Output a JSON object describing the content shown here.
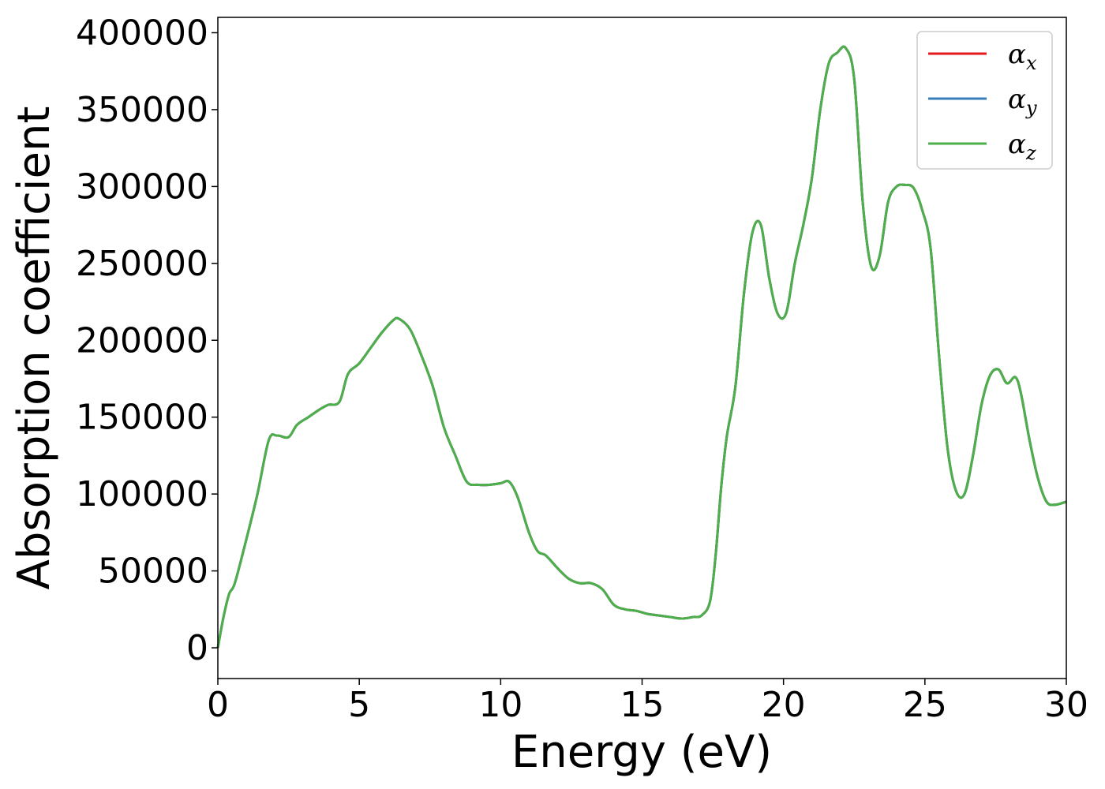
{
  "chart_data": {
    "type": "line",
    "title": "",
    "xlabel": "Energy (eV)",
    "ylabel": "Absorption coefficient",
    "xlim": [
      0,
      30
    ],
    "ylim": [
      -20000,
      410000
    ],
    "xticks": [
      0,
      5,
      10,
      15,
      20,
      25,
      30
    ],
    "yticks": [
      0,
      50000,
      100000,
      150000,
      200000,
      250000,
      300000,
      350000,
      400000
    ],
    "grid": false,
    "legend_position": "top-right",
    "x": [
      0,
      0.2,
      0.4,
      0.6,
      1.0,
      1.4,
      1.8,
      2.1,
      2.5,
      2.8,
      3.2,
      3.6,
      3.9,
      4.3,
      4.6,
      5.0,
      5.4,
      5.8,
      6.2,
      6.4,
      6.8,
      7.2,
      7.6,
      8.0,
      8.4,
      8.8,
      9.2,
      9.6,
      10.0,
      10.3,
      10.6,
      11.0,
      11.3,
      11.6,
      12.0,
      12.4,
      12.8,
      13.2,
      13.6,
      14.0,
      14.4,
      14.8,
      15.2,
      15.6,
      16.0,
      16.4,
      16.8,
      17.1,
      17.4,
      17.6,
      17.8,
      18.0,
      18.3,
      18.6,
      18.9,
      19.2,
      19.5,
      19.8,
      20.1,
      20.4,
      20.7,
      21.0,
      21.3,
      21.6,
      21.9,
      22.2,
      22.5,
      22.8,
      23.1,
      23.4,
      23.7,
      24.0,
      24.3,
      24.6,
      24.9,
      25.2,
      25.5,
      25.8,
      26.1,
      26.4,
      26.7,
      27.0,
      27.3,
      27.6,
      27.9,
      28.2,
      28.4,
      28.7,
      29.0,
      29.3,
      29.6,
      30.0
    ],
    "series": [
      {
        "name": "α_x",
        "color": "#e41a1c",
        "values": [
          0,
          20000,
          35000,
          42000,
          70000,
          100000,
          135000,
          138000,
          137000,
          145000,
          150000,
          155000,
          158000,
          160000,
          178000,
          185000,
          195000,
          205000,
          213000,
          214000,
          207000,
          190000,
          170000,
          143000,
          125000,
          108000,
          106000,
          106000,
          107000,
          108000,
          98000,
          75000,
          63000,
          60000,
          52000,
          45000,
          42000,
          42000,
          38000,
          28000,
          25000,
          24000,
          22000,
          21000,
          20000,
          19000,
          20000,
          21000,
          30000,
          60000,
          105000,
          138000,
          170000,
          230000,
          270000,
          275000,
          240000,
          217000,
          218000,
          250000,
          275000,
          305000,
          350000,
          380000,
          387000,
          390000,
          370000,
          290000,
          248000,
          255000,
          290000,
          300000,
          301000,
          299000,
          285000,
          260000,
          190000,
          130000,
          102000,
          100000,
          125000,
          158000,
          177000,
          181000,
          172000,
          176000,
          165000,
          135000,
          110000,
          95000,
          93000,
          95000
        ]
      },
      {
        "name": "α_y",
        "color": "#377eb8",
        "values": [
          0,
          20000,
          35000,
          42000,
          70000,
          100000,
          135000,
          138000,
          137000,
          145000,
          150000,
          155000,
          158000,
          160000,
          178000,
          185000,
          195000,
          205000,
          213000,
          214000,
          207000,
          190000,
          170000,
          143000,
          125000,
          108000,
          106000,
          106000,
          107000,
          108000,
          98000,
          75000,
          63000,
          60000,
          52000,
          45000,
          42000,
          42000,
          38000,
          28000,
          25000,
          24000,
          22000,
          21000,
          20000,
          19000,
          20000,
          21000,
          30000,
          60000,
          105000,
          138000,
          170000,
          230000,
          270000,
          275000,
          240000,
          217000,
          218000,
          250000,
          275000,
          305000,
          350000,
          380000,
          387000,
          390000,
          370000,
          290000,
          248000,
          255000,
          290000,
          300000,
          301000,
          299000,
          285000,
          260000,
          190000,
          130000,
          102000,
          100000,
          125000,
          158000,
          177000,
          181000,
          172000,
          176000,
          165000,
          135000,
          110000,
          95000,
          93000,
          95000
        ]
      },
      {
        "name": "α_z",
        "color": "#4daf4a",
        "values": [
          0,
          20000,
          35000,
          42000,
          70000,
          100000,
          135000,
          138000,
          137000,
          145000,
          150000,
          155000,
          158000,
          160000,
          178000,
          185000,
          195000,
          205000,
          213000,
          214000,
          207000,
          190000,
          170000,
          143000,
          125000,
          108000,
          106000,
          106000,
          107000,
          108000,
          98000,
          75000,
          63000,
          60000,
          52000,
          45000,
          42000,
          42000,
          38000,
          28000,
          25000,
          24000,
          22000,
          21000,
          20000,
          19000,
          20000,
          21000,
          30000,
          60000,
          105000,
          138000,
          170000,
          230000,
          270000,
          275000,
          240000,
          217000,
          218000,
          250000,
          275000,
          305000,
          350000,
          380000,
          387000,
          390000,
          370000,
          290000,
          248000,
          255000,
          290000,
          300000,
          301000,
          299000,
          285000,
          260000,
          190000,
          130000,
          102000,
          100000,
          125000,
          158000,
          177000,
          181000,
          172000,
          176000,
          165000,
          135000,
          110000,
          95000,
          93000,
          95000
        ]
      }
    ],
    "legend": [
      {
        "symbol": "α",
        "sub": "x"
      },
      {
        "symbol": "α",
        "sub": "y"
      },
      {
        "symbol": "α",
        "sub": "z"
      }
    ]
  }
}
